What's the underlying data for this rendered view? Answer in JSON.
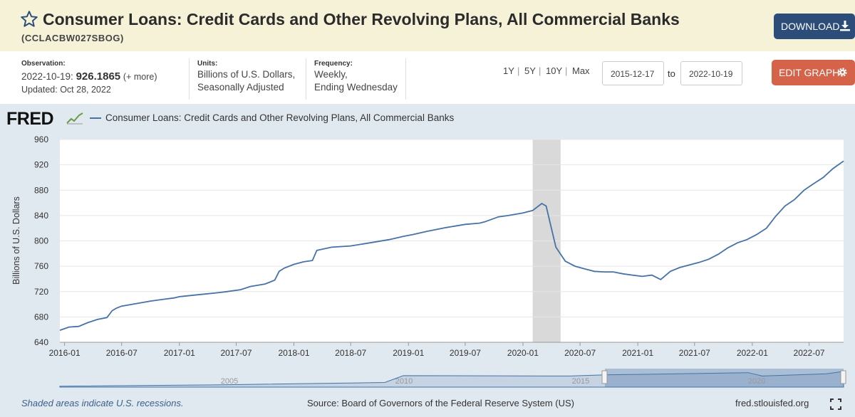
{
  "header": {
    "title": "Consumer Loans: Credit Cards and Other Revolving Plans, All Commercial Banks",
    "series_id": "(CCLACBW027SBOG)",
    "download_label": "DOWNLOAD"
  },
  "meta": {
    "observation_label": "Observation:",
    "observation_date": "2022-10-19:",
    "observation_value": "926.1865",
    "observation_more": "(+ more)",
    "updated": "Updated: Oct 28, 2022",
    "units_label": "Units:",
    "units_line1": "Billions of U.S. Dollars,",
    "units_line2": "Seasonally Adjusted",
    "frequency_label": "Frequency:",
    "frequency_line1": "Weekly,",
    "frequency_line2": "Ending Wednesday"
  },
  "controls": {
    "ranges": [
      "1Y",
      "5Y",
      "10Y",
      "Max"
    ],
    "separator": "|",
    "start_date": "2015-12-17",
    "to_label": "to",
    "end_date": "2022-10-19",
    "edit_graph_label": "EDIT GRAPH"
  },
  "legend": {
    "logo": "FRED",
    "series_name": "Consumer Loans: Credit Cards and Other Revolving Plans, All Commercial Banks"
  },
  "footer": {
    "recession_note": "Shaded areas indicate U.S. recessions.",
    "source": "Source: Board of Governors of the Federal Reserve System (US)",
    "url": "fred.stlouisfed.org"
  },
  "colors": {
    "line": "#4572a7",
    "header_bg": "#f5f2d8",
    "download_bg": "#2c4d7a",
    "edit_bg": "#d4634a",
    "chart_bg": "#e1e9f0",
    "recession": "#d9d9d9"
  },
  "icons": [
    "star-icon",
    "download-icon",
    "gear-icon",
    "fullscreen-icon"
  ],
  "chart_data": {
    "type": "line",
    "ylabel": "Billions of U.S. Dollars",
    "ylim": [
      640,
      960
    ],
    "yticks": [
      640,
      680,
      720,
      760,
      800,
      840,
      880,
      920,
      960
    ],
    "xlim": [
      "2015-12-17",
      "2022-10-19"
    ],
    "xticks": [
      "2016-01",
      "2016-07",
      "2017-01",
      "2017-07",
      "2018-01",
      "2018-07",
      "2019-01",
      "2019-07",
      "2020-01",
      "2020-07",
      "2021-01",
      "2021-07",
      "2022-01",
      "2022-07"
    ],
    "grid": true,
    "legend": "top-left",
    "recessions": [
      [
        "2020-02-01",
        "2020-04-30"
      ]
    ],
    "navigator_ticks": [
      "2005",
      "2010",
      "2015",
      "2020"
    ],
    "series": [
      {
        "name": "Consumer Loans: Credit Cards and Other Revolving Plans, All Commercial Banks",
        "x": [
          "2015-12-17",
          "2016-01-15",
          "2016-02-15",
          "2016-03-15",
          "2016-04-15",
          "2016-05-15",
          "2016-06-01",
          "2016-06-15",
          "2016-07-01",
          "2016-08-15",
          "2016-10-01",
          "2016-11-15",
          "2016-12-15",
          "2017-01-01",
          "2017-03-01",
          "2017-05-01",
          "2017-06-01",
          "2017-07-15",
          "2017-08-15",
          "2017-10-01",
          "2017-11-01",
          "2017-11-15",
          "2017-12-01",
          "2018-01-01",
          "2018-02-01",
          "2018-03-01",
          "2018-03-15",
          "2018-05-01",
          "2018-07-01",
          "2018-09-01",
          "2018-11-01",
          "2018-12-15",
          "2019-01-15",
          "2019-03-01",
          "2019-05-01",
          "2019-07-01",
          "2019-08-15",
          "2019-09-01",
          "2019-10-15",
          "2019-11-15",
          "2020-01-01",
          "2020-02-01",
          "2020-03-01",
          "2020-03-15",
          "2020-04-15",
          "2020-05-15",
          "2020-06-15",
          "2020-07-15",
          "2020-08-15",
          "2020-09-15",
          "2020-10-15",
          "2020-11-15",
          "2020-12-15",
          "2021-01-15",
          "2021-02-15",
          "2021-03-15",
          "2021-04-15",
          "2021-05-15",
          "2021-06-15",
          "2021-07-15",
          "2021-08-15",
          "2021-09-15",
          "2021-10-15",
          "2021-11-15",
          "2021-12-15",
          "2022-01-15",
          "2022-02-15",
          "2022-03-15",
          "2022-04-15",
          "2022-05-15",
          "2022-06-15",
          "2022-07-15",
          "2022-08-15",
          "2022-09-15",
          "2022-10-19"
        ],
        "values": [
          659,
          664,
          665,
          671,
          676,
          679,
          690,
          694,
          697,
          701,
          705,
          708,
          710,
          712,
          715,
          718,
          720,
          723,
          728,
          732,
          738,
          752,
          757,
          763,
          767,
          769,
          785,
          790,
          792,
          797,
          802,
          807,
          810,
          815,
          821,
          826,
          828,
          830,
          838,
          840,
          844,
          848,
          859,
          855,
          790,
          768,
          760,
          756,
          752,
          751,
          751,
          748,
          746,
          744,
          746,
          739,
          752,
          758,
          762,
          766,
          771,
          779,
          789,
          797,
          802,
          810,
          820,
          838,
          855,
          865,
          880,
          890,
          900,
          914,
          926
        ]
      }
    ]
  }
}
